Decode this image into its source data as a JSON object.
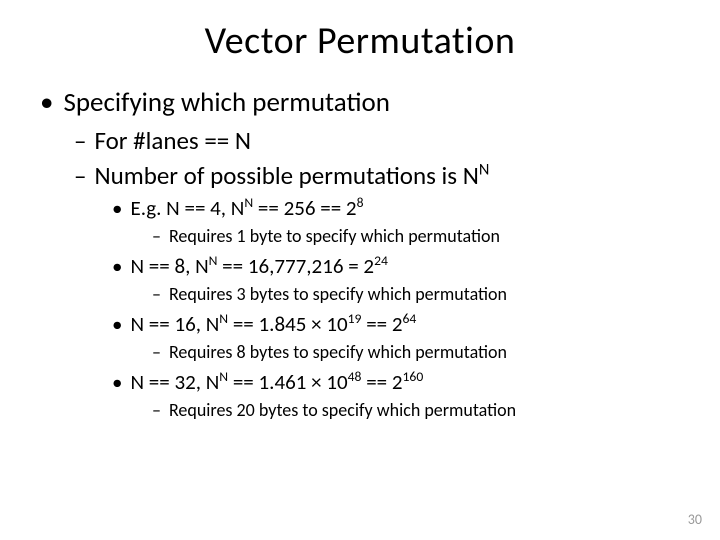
{
  "title": "Vector Permutation",
  "l1_1": "Specifying which permutation",
  "l2_1": "For #lanes == N",
  "l2_2_a": "Number of possible permutations is N",
  "l2_2_sup": "N",
  "l3_1_a": "E.g. N == 4, N",
  "l3_1_sup1": "N",
  "l3_1_b": " == 256 == 2",
  "l3_1_sup2": "8",
  "l4_1": "Requires 1 byte to specify which permutation",
  "l3_2_a": "N == 8, N",
  "l3_2_sup1": "N",
  "l3_2_b": " == 16,777,216 = 2",
  "l3_2_sup2": "24",
  "l4_2": "Requires 3 bytes to specify which permutation",
  "l3_3_a": "N == 16, N",
  "l3_3_sup1": "N",
  "l3_3_b": " == 1.845 × 10",
  "l3_3_sup2": "19",
  "l3_3_c": "  == 2",
  "l3_3_sup3": "64",
  "l4_3": "Requires 8 bytes to specify which permutation",
  "l3_4_a": "N == 32, N",
  "l3_4_sup1": "N",
  "l3_4_b": " == 1.461 × 10",
  "l3_4_sup2": "48",
  "l3_4_c": "  == 2",
  "l3_4_sup3": "160",
  "l4_4": "Requires 20 bytes to specify which permutation",
  "page_number": "30"
}
